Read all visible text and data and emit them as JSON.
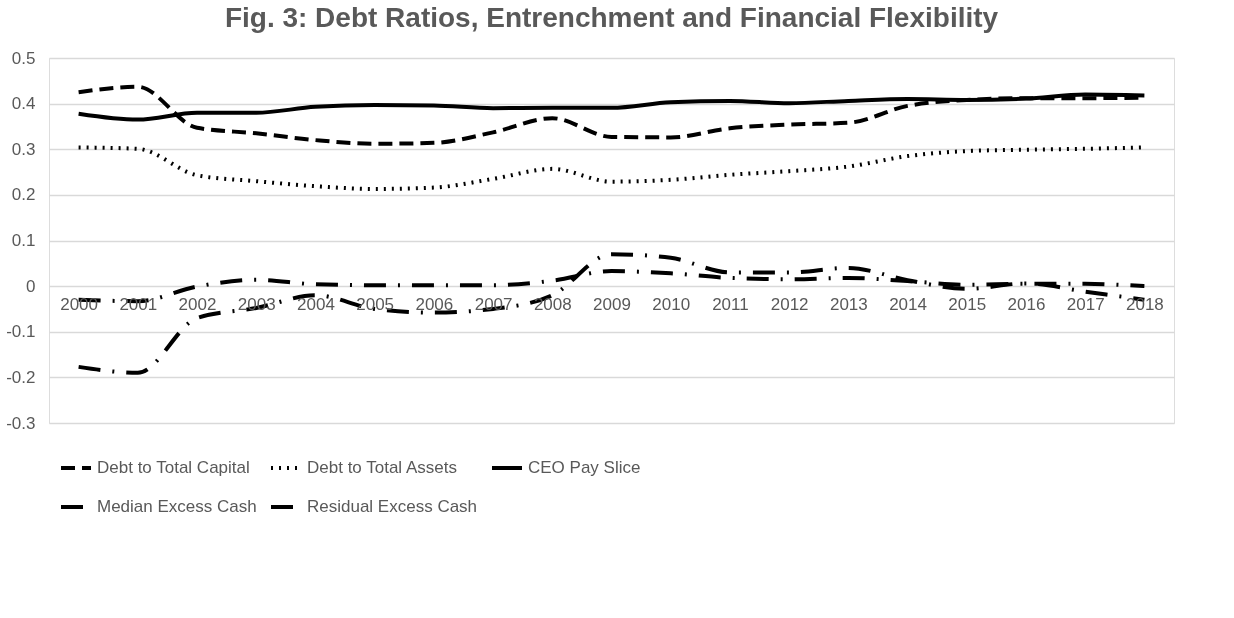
{
  "chart_data": {
    "type": "line",
    "title": "Fig. 3: Debt Ratios, Entrenchment and Financial Flexibility",
    "categories": [
      "2000",
      "2001",
      "2002",
      "2003",
      "2004",
      "2005",
      "2006",
      "2007",
      "2008",
      "2009",
      "2010",
      "2011",
      "2012",
      "2013",
      "2014",
      "2015",
      "2016",
      "2017",
      "2018"
    ],
    "ylim": [
      -0.3,
      0.5
    ],
    "yticks": [
      -0.3,
      -0.2,
      -0.1,
      {
        "value": 0,
        "label": "0"
      },
      0.1,
      0.2,
      0.3,
      0.4,
      0.5
    ],
    "grid": "y",
    "legend": "bottom",
    "series": [
      {
        "name": "Debt to Total Capital",
        "color": "#000000",
        "line_style": "dashed",
        "values": [
          0.425,
          0.437,
          0.347,
          0.335,
          0.32,
          0.312,
          0.314,
          0.337,
          0.368,
          0.327,
          0.326,
          0.346,
          0.354,
          0.358,
          0.395,
          0.408,
          0.412,
          0.412,
          0.413
        ]
      },
      {
        "name": "Debt to Total Assets",
        "color": "#000000",
        "line_style": "dotted",
        "values": [
          0.304,
          0.301,
          0.243,
          0.23,
          0.219,
          0.213,
          0.216,
          0.235,
          0.257,
          0.229,
          0.233,
          0.244,
          0.252,
          0.262,
          0.285,
          0.296,
          0.299,
          0.301,
          0.304
        ]
      },
      {
        "name": "CEO Pay Slice",
        "color": "#000000",
        "line_style": "solid",
        "values": [
          0.378,
          0.365,
          0.38,
          0.38,
          0.393,
          0.397,
          0.396,
          0.39,
          0.391,
          0.391,
          0.403,
          0.406,
          0.401,
          0.406,
          0.41,
          0.408,
          0.411,
          0.42,
          0.418
        ]
      },
      {
        "name": "Median Excess Cash",
        "color": "#000000",
        "line_style": "dashdot",
        "values": [
          -0.03,
          -0.033,
          -0.001,
          0.014,
          0.004,
          0.002,
          0.002,
          0.002,
          0.012,
          0.033,
          0.028,
          0.018,
          0.015,
          0.018,
          0.011,
          0.003,
          0.005,
          0.005,
          0.0
        ]
      },
      {
        "name": "Residual Excess Cash",
        "color": "#000000",
        "line_style": "dashdot",
        "values": [
          -0.177,
          -0.19,
          -0.07,
          -0.048,
          -0.02,
          -0.05,
          -0.058,
          -0.05,
          -0.02,
          0.07,
          0.062,
          0.03,
          0.03,
          0.04,
          0.013,
          -0.006,
          0.006,
          -0.012,
          -0.03
        ]
      }
    ]
  }
}
